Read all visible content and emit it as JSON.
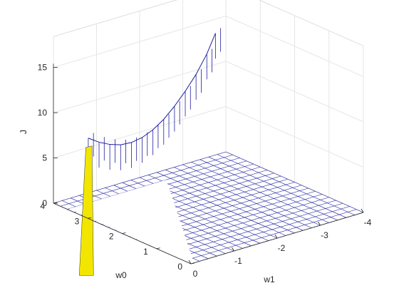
{
  "chart_data": {
    "type": "surface",
    "title": "",
    "xlabel": "w1",
    "ylabel": "w0",
    "zlabel": "J",
    "xlim": [
      -4,
      0
    ],
    "ylim": [
      0,
      4
    ],
    "zlim": [
      0,
      15
    ],
    "x_ticks": [
      "-4",
      "-3",
      "-2",
      "-1",
      "0"
    ],
    "y_ticks": [
      "0",
      "1",
      "2",
      "3",
      "4"
    ],
    "z_ticks": [
      "0",
      "5",
      "10",
      "15"
    ],
    "grid": true,
    "colors": {
      "mesh": "#1e1ea0",
      "path": "#f2e600",
      "path_dark": "#333333"
    },
    "surface": {
      "w1_range": [
        -4,
        0
      ],
      "w0_range": [
        0,
        4
      ],
      "mesh_divisions": 20,
      "floor_J": 0,
      "curtain": [
        {
          "w1": -0.25,
          "J": 8.0
        },
        {
          "w1": -0.5,
          "J": 7.2
        },
        {
          "w1": -0.75,
          "J": 6.6
        },
        {
          "w1": -1.0,
          "J": 6.2
        },
        {
          "w1": -1.25,
          "J": 6.1
        },
        {
          "w1": -1.5,
          "J": 6.3
        },
        {
          "w1": -1.75,
          "J": 6.8
        },
        {
          "w1": -2.0,
          "J": 7.6
        },
        {
          "w1": -2.25,
          "J": 8.7
        },
        {
          "w1": -2.5,
          "J": 10.0
        },
        {
          "w1": -2.75,
          "J": 11.5
        },
        {
          "w1": -3.0,
          "J": 13.4
        },
        {
          "w1": -3.2,
          "J": 15.4
        }
      ]
    },
    "descent_path": [
      {
        "w0": 0.0,
        "w1": 0.0,
        "J": 0.0
      },
      {
        "w0": 0.1,
        "w1": -0.1,
        "J": 8.0
      },
      {
        "w0": 0.15,
        "w1": -0.15,
        "J": 8.0
      }
    ]
  }
}
